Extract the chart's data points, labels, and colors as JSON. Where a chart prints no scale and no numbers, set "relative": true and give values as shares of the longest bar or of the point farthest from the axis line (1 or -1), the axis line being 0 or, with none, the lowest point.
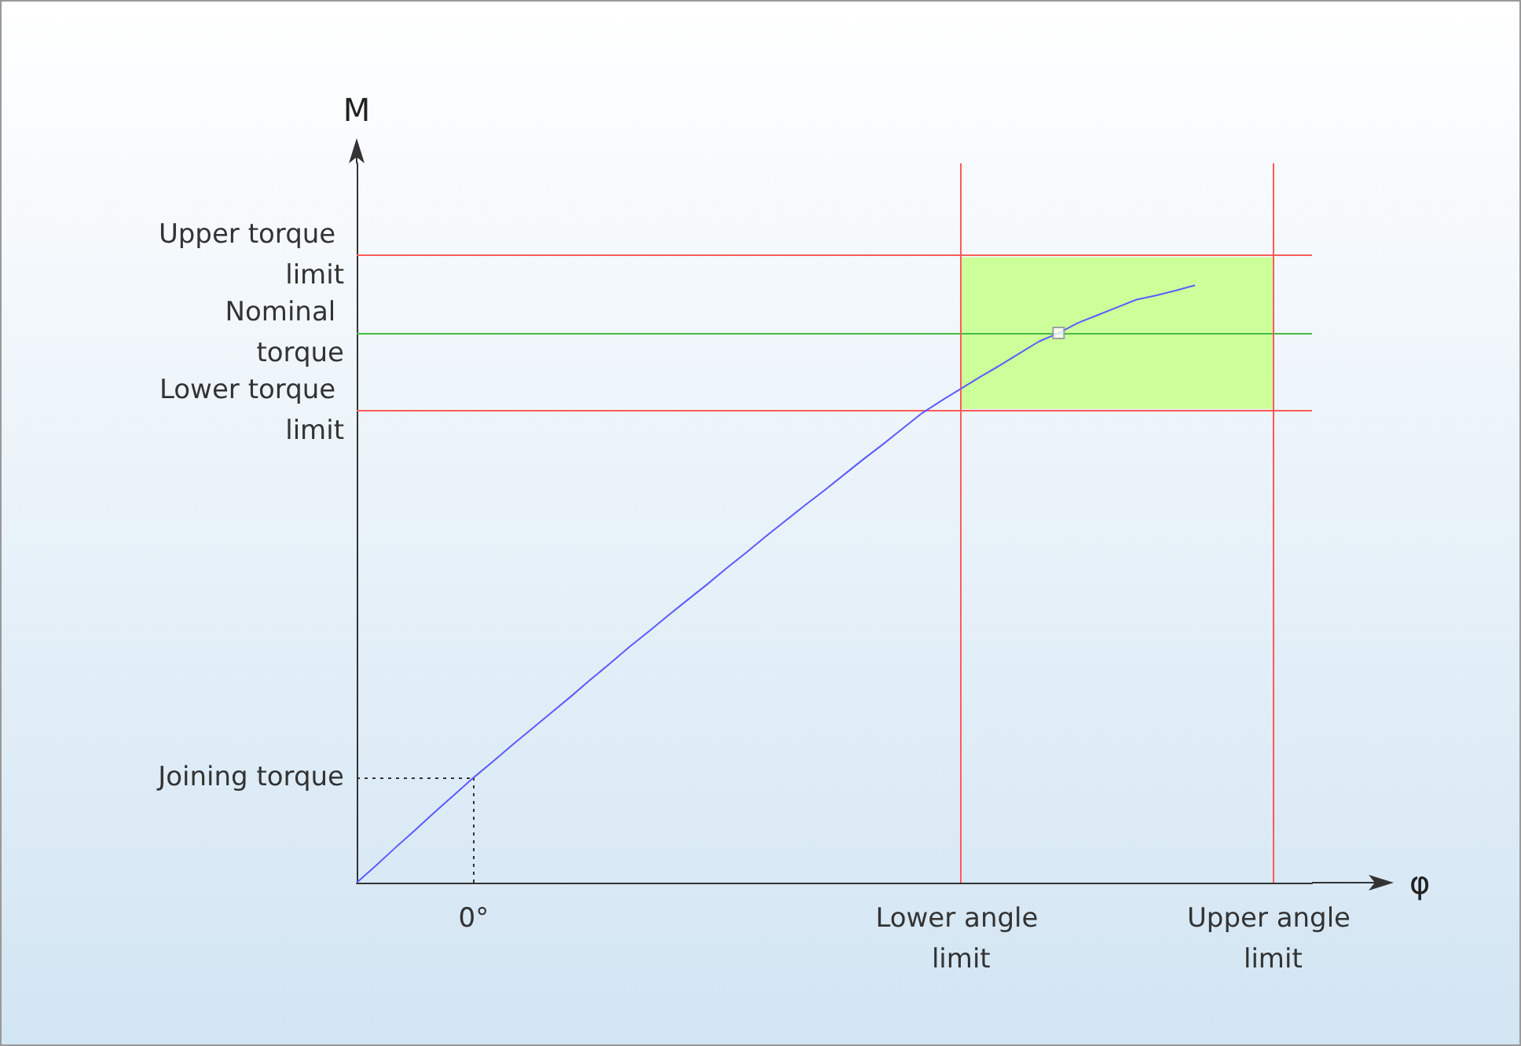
{
  "chart_data": {
    "type": "line",
    "relative": true,
    "xlabel": "φ",
    "ylabel": "M",
    "categories": [
      null,
      null,
      null,
      null,
      null,
      null,
      "0°",
      null,
      null,
      null,
      null,
      null,
      null,
      null,
      null,
      null,
      null,
      null,
      null,
      null,
      null,
      null,
      null,
      null,
      null,
      null,
      null,
      null,
      null,
      null,
      null,
      "Lower angle limit",
      null,
      null,
      null,
      null,
      null,
      null,
      null,
      null,
      null,
      null,
      null,
      null,
      null,
      null,
      null,
      "Upper angle limit",
      null,
      null
    ],
    "series": [
      {
        "color": "#5b5bff",
        "values": [
          0,
          0.029,
          0.059,
          0.088,
          0.118,
          0.147,
          0.176,
          0.203,
          0.231,
          0.258,
          0.285,
          0.312,
          0.34,
          0.367,
          0.395,
          0.421,
          0.448,
          0.474,
          0.5,
          0.527,
          0.553,
          0.58,
          0.606,
          0.632,
          0.657,
          0.683,
          0.709,
          0.734,
          0.76,
          0.786,
          0.807,
          0.827,
          0.847,
          0.866,
          0.886,
          0.906,
          0.92,
          0.937,
          0.95,
          0.963,
          0.976,
          0.983,
          0.991,
          1,
          null,
          null,
          null,
          null,
          null,
          null
        ]
      },
      {
        "type": "scatter",
        "marker": "square",
        "color": "#8a8aa0",
        "values": [
          null,
          null,
          null,
          null,
          null,
          null,
          null,
          null,
          null,
          null,
          null,
          null,
          null,
          null,
          null,
          null,
          null,
          null,
          null,
          null,
          null,
          null,
          null,
          null,
          null,
          null,
          null,
          null,
          null,
          null,
          null,
          null,
          null,
          null,
          null,
          null,
          0.92,
          null,
          null,
          null,
          null,
          null,
          null,
          null,
          null,
          null,
          null,
          null,
          null,
          null
        ]
      }
    ],
    "ref_lines": [
      {
        "axis": "y",
        "value": 1.047,
        "label": "Upper torque limit",
        "color": "#ff5a5a"
      },
      {
        "axis": "y",
        "value": 0.92,
        "label": "Nominal torque",
        "color": "#44bb44"
      },
      {
        "axis": "y",
        "value": 0.793,
        "label": "Lower torque limit",
        "color": "#ff5a5a"
      },
      {
        "axis": "y",
        "value": 0.176,
        "label": "Joining torque",
        "color": "#333333",
        "line_style": "dotted"
      },
      {
        "axis": "x",
        "value": "0°",
        "color": "#333333",
        "line_style": "dotted"
      },
      {
        "axis": "x",
        "value": "Lower angle limit",
        "color": "#ff5a5a"
      },
      {
        "axis": "x",
        "value": "Upper angle limit",
        "color": "#ff5a5a"
      }
    ],
    "bands": [
      {
        "axis": "y",
        "from": 0.793,
        "to": 1.047,
        "color": "#ccff99"
      }
    ]
  }
}
